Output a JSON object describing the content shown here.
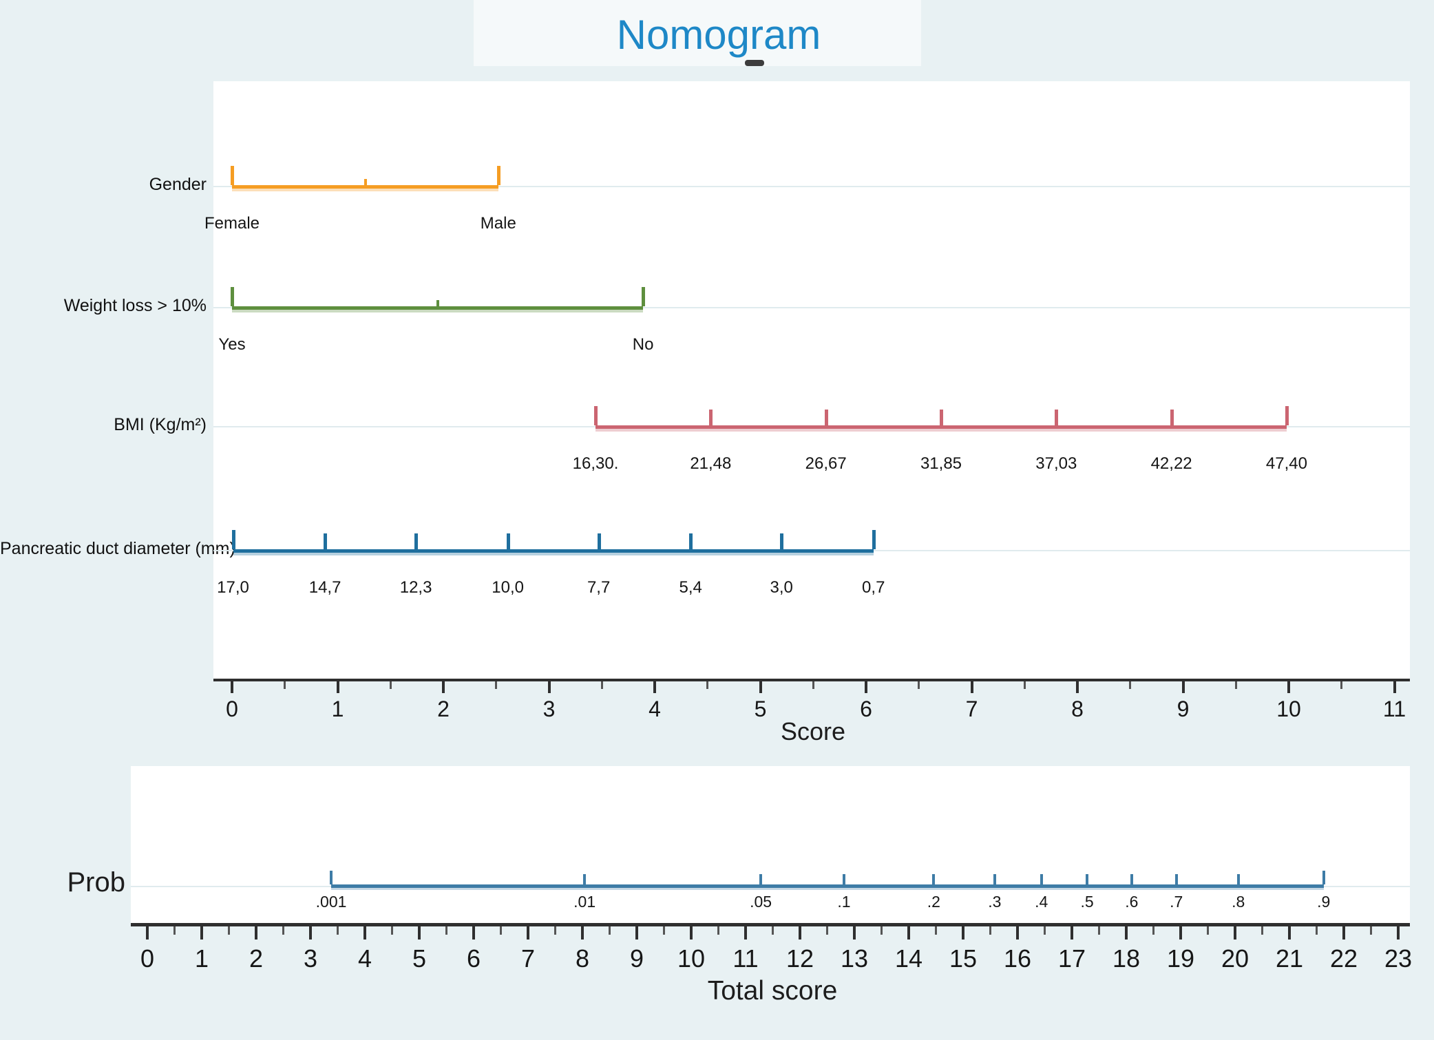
{
  "title": "Nomogram",
  "colors": {
    "title": "#1E88C7",
    "background": "#E8F1F3",
    "panel": "#FFFFFF",
    "axis_line": "#2F2F2F",
    "minor_tick": "#555555",
    "grid_faint": "#E0EBEE"
  },
  "chart_data": {
    "type": "nomogram",
    "title": "Nomogram",
    "score_axis": {
      "label": "Score",
      "min": 0,
      "max": 11,
      "tick_step": 1,
      "minor_step": 0.5,
      "tick_labels": [
        "0",
        "1",
        "2",
        "3",
        "4",
        "5",
        "6",
        "7",
        "8",
        "9",
        "10",
        "11"
      ]
    },
    "variables": [
      {
        "name": "Gender",
        "color": "#F59D23",
        "start": 0,
        "end": 2.52,
        "ticks": [
          {
            "pos": 0,
            "label": "Female"
          },
          {
            "pos": 2.52,
            "label": "Male"
          }
        ],
        "minor_ticks": [
          1.26
        ]
      },
      {
        "name": "Weight loss > 10%",
        "color": "#5E8F3E",
        "start": 0,
        "end": 3.89,
        "ticks": [
          {
            "pos": 0,
            "label": "Yes"
          },
          {
            "pos": 3.89,
            "label": "No"
          }
        ],
        "minor_ticks": [
          1.945
        ]
      },
      {
        "name": "BMI (Kg/m²)",
        "color": "#CB6571",
        "start": 3.44,
        "end": 9.98,
        "ticks": [
          {
            "pos": 3.44,
            "label": "16,30."
          },
          {
            "pos": 4.53,
            "label": "21,48"
          },
          {
            "pos": 5.62,
            "label": "26,67"
          },
          {
            "pos": 6.71,
            "label": "31,85"
          },
          {
            "pos": 7.8,
            "label": "37,03"
          },
          {
            "pos": 8.89,
            "label": "42,22"
          },
          {
            "pos": 9.98,
            "label": "47,40"
          }
        ],
        "minor_ticks": []
      },
      {
        "name": "Pancreatic duct diameter (mm)",
        "color": "#1F6F9E",
        "start": 0.01,
        "end": 6.07,
        "ticks": [
          {
            "pos": 0.01,
            "label": "17,0"
          },
          {
            "pos": 0.88,
            "label": "14,7"
          },
          {
            "pos": 1.74,
            "label": "12,3"
          },
          {
            "pos": 2.61,
            "label": "10,0"
          },
          {
            "pos": 3.47,
            "label": "7,7"
          },
          {
            "pos": 4.34,
            "label": "5,4"
          },
          {
            "pos": 5.2,
            "label": "3,0"
          },
          {
            "pos": 6.07,
            "label": "0,7"
          }
        ],
        "minor_ticks": []
      }
    ],
    "probability_axis": {
      "label": "Prob",
      "color": "#3E7CA6",
      "ticks": [
        {
          "pos": 3.38,
          "label": ".001"
        },
        {
          "pos": 8.04,
          "label": ".01"
        },
        {
          "pos": 11.28,
          "label": ".05"
        },
        {
          "pos": 12.81,
          "label": ".1"
        },
        {
          "pos": 14.46,
          "label": ".2"
        },
        {
          "pos": 15.58,
          "label": ".3"
        },
        {
          "pos": 16.44,
          "label": ".4"
        },
        {
          "pos": 17.28,
          "label": ".5"
        },
        {
          "pos": 18.1,
          "label": ".6"
        },
        {
          "pos": 18.92,
          "label": ".7"
        },
        {
          "pos": 20.06,
          "label": ".8"
        },
        {
          "pos": 21.63,
          "label": ".9"
        }
      ]
    },
    "total_score_axis": {
      "label": "Total score",
      "min": 0,
      "max": 23,
      "tick_step": 1,
      "minor_step": 0.5,
      "tick_labels": [
        "0",
        "1",
        "2",
        "3",
        "4",
        "5",
        "6",
        "7",
        "8",
        "9",
        "10",
        "11",
        "12",
        "13",
        "14",
        "15",
        "16",
        "17",
        "18",
        "19",
        "20",
        "21",
        "22",
        "23"
      ]
    }
  }
}
